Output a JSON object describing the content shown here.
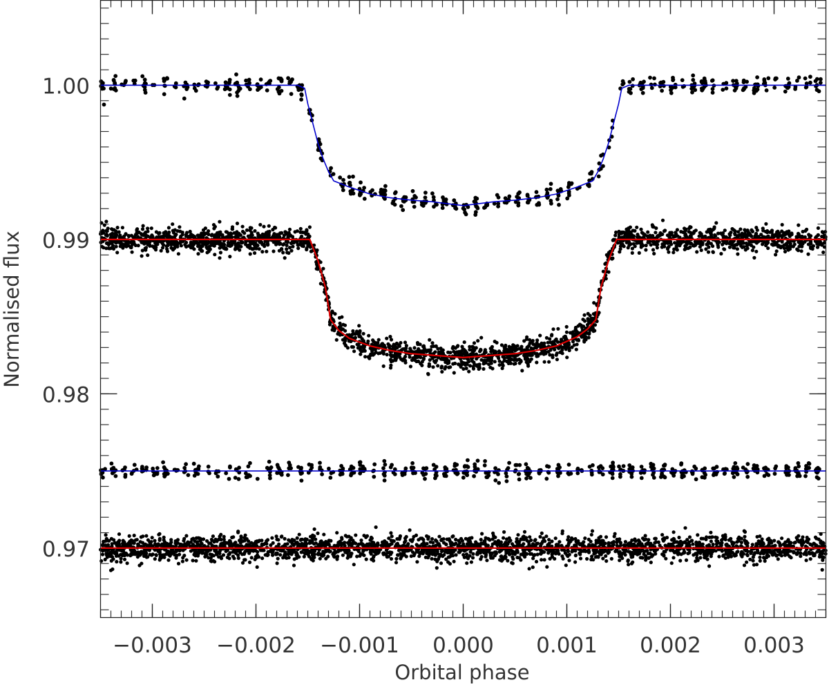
{
  "chart_data": {
    "type": "scatter",
    "title": "",
    "xlabel": "Orbital phase",
    "ylabel": "Normalised flux",
    "xlim": [
      -0.0035,
      0.0035
    ],
    "ylim": [
      0.9655,
      1.0055
    ],
    "x_ticks": [
      {
        "value": -0.003,
        "label": "−0.003"
      },
      {
        "value": -0.002,
        "label": "−0.002"
      },
      {
        "value": -0.001,
        "label": "−0.001"
      },
      {
        "value": 0.0,
        "label": "0.000"
      },
      {
        "value": 0.001,
        "label": "0.001"
      },
      {
        "value": 0.002,
        "label": "0.002"
      },
      {
        "value": 0.003,
        "label": "0.003"
      }
    ],
    "y_ticks": [
      {
        "value": 1.0,
        "label": "1.00"
      },
      {
        "value": 0.99,
        "label": "0.99"
      },
      {
        "value": 0.98,
        "label": "0.98"
      },
      {
        "value": 0.97,
        "label": "0.97"
      }
    ],
    "x_minor_step": 0.0001,
    "y_minor_step": 0.001,
    "grid": false,
    "series": [
      {
        "role": "light curve (sparse)",
        "point_color": "#000000",
        "model_color": "#0000cc",
        "baseline": 1.0,
        "transit_depth": 0.0078,
        "ingress_start": -0.00153,
        "ingress_end": -0.00125,
        "egress_start": 0.00127,
        "egress_end": 0.00152,
        "scatter": 0.0003,
        "model": [
          [
            -0.0035,
            1.0
          ],
          [
            -0.0016,
            1.0
          ],
          [
            -0.00153,
            0.9998
          ],
          [
            -0.0015,
            0.9988
          ],
          [
            -0.00145,
            0.9975
          ],
          [
            -0.0014,
            0.9962
          ],
          [
            -0.00135,
            0.9952
          ],
          [
            -0.0013,
            0.9944
          ],
          [
            -0.00125,
            0.9938
          ],
          [
            -0.0011,
            0.9934
          ],
          [
            -0.0009,
            0.99295
          ],
          [
            -0.0007,
            0.9927
          ],
          [
            -0.0005,
            0.99255
          ],
          [
            -0.0003,
            0.99245
          ],
          [
            0.0,
            0.9922
          ],
          [
            0.0003,
            0.99245
          ],
          [
            0.0005,
            0.99255
          ],
          [
            0.0007,
            0.9927
          ],
          [
            0.0009,
            0.99295
          ],
          [
            0.0011,
            0.9934
          ],
          [
            0.00125,
            0.9938
          ],
          [
            0.0013,
            0.9944
          ],
          [
            0.00135,
            0.9952
          ],
          [
            0.0014,
            0.9962
          ],
          [
            0.00145,
            0.9975
          ],
          [
            0.0015,
            0.9988
          ],
          [
            0.00153,
            0.9998
          ],
          [
            0.0016,
            1.0
          ],
          [
            0.0035,
            1.0
          ]
        ]
      },
      {
        "role": "light curve (dense)",
        "point_color": "#000000",
        "model_color": "#dd0000",
        "baseline": 0.99,
        "transit_depth": 0.0077,
        "ingress_start": -0.00148,
        "ingress_end": -0.00128,
        "egress_start": 0.00128,
        "egress_end": 0.00148,
        "scatter": 0.0004,
        "model": [
          [
            -0.0035,
            0.99
          ],
          [
            -0.00148,
            0.99
          ],
          [
            -0.0014,
            0.9886
          ],
          [
            -0.00133,
            0.9869
          ],
          [
            -0.00128,
            0.9848
          ],
          [
            -0.0012,
            0.9841
          ],
          [
            -0.0011,
            0.9836
          ],
          [
            -0.0009,
            0.9831
          ],
          [
            -0.0007,
            0.9828
          ],
          [
            -0.0005,
            0.9826
          ],
          [
            -0.0003,
            0.9825
          ],
          [
            0.0,
            0.98235
          ],
          [
            0.0003,
            0.9825
          ],
          [
            0.0005,
            0.9826
          ],
          [
            0.0007,
            0.9828
          ],
          [
            0.0009,
            0.9831
          ],
          [
            0.0011,
            0.9837
          ],
          [
            0.0012,
            0.9842
          ],
          [
            0.00128,
            0.9848
          ],
          [
            0.00133,
            0.9869
          ],
          [
            0.0014,
            0.9886
          ],
          [
            0.00148,
            0.99
          ],
          [
            0.0035,
            0.99
          ]
        ]
      },
      {
        "role": "residuals (sparse)",
        "point_color": "#000000",
        "model_color": "#0000cc",
        "baseline": 0.975,
        "scatter": 0.00025,
        "model": [
          [
            -0.0035,
            0.975
          ],
          [
            0.0035,
            0.975
          ]
        ]
      },
      {
        "role": "residuals (dense)",
        "point_color": "#000000",
        "model_color": "#dd0000",
        "baseline": 0.97,
        "scatter": 0.0004,
        "model": [
          [
            -0.0035,
            0.97
          ],
          [
            0.0035,
            0.97
          ]
        ]
      }
    ]
  }
}
